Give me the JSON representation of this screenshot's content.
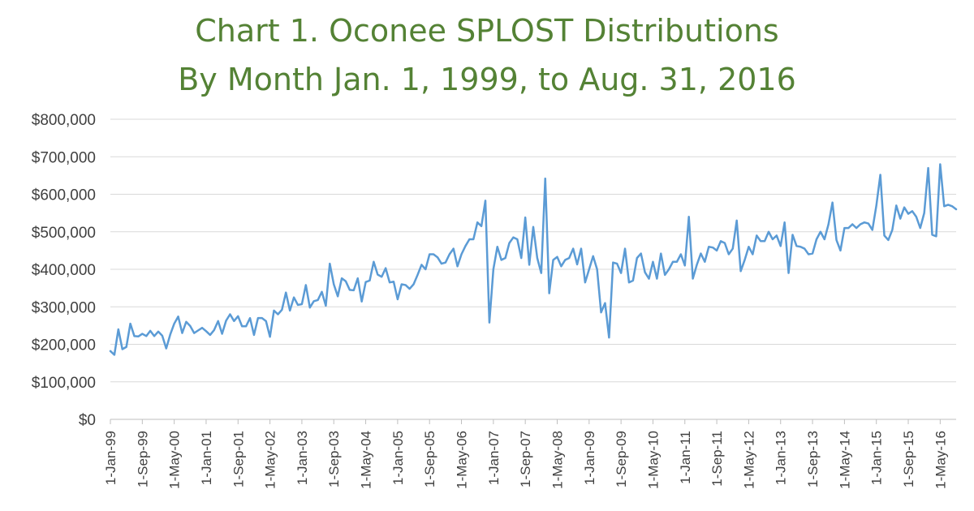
{
  "chart_data": {
    "type": "line",
    "title": "Chart 1. Oconee SPLOST Distributions",
    "subtitle": "By Month Jan. 1, 1999, to Aug. 31, 2016",
    "xlabel": "",
    "ylabel": "",
    "ylim": [
      0,
      800000
    ],
    "yticks": [
      "$0",
      "$100,000",
      "$200,000",
      "$300,000",
      "$400,000",
      "$500,000",
      "$600,000",
      "$700,000",
      "$800,000"
    ],
    "xticks": [
      "1-Jan-99",
      "1-Sep-99",
      "1-May-00",
      "1-Jan-01",
      "1-Sep-01",
      "1-May-02",
      "1-Jan-03",
      "1-Sep-03",
      "1-May-04",
      "1-Jan-05",
      "1-Sep-05",
      "1-May-06",
      "1-Jan-07",
      "1-Sep-07",
      "1-May-08",
      "1-Jan-09",
      "1-Sep-09",
      "1-May-10",
      "1-Jan-11",
      "1-Sep-11",
      "1-May-12",
      "1-Jan-13",
      "1-Sep-13",
      "1-May-14",
      "1-Jan-15",
      "1-Sep-15",
      "1-May-16"
    ],
    "x_start": "1-Jan-99",
    "x_end": "1-Aug-16",
    "grid": true,
    "legend": "none",
    "color": "#5B9BD5",
    "series": [
      {
        "values": [
          182000,
          172000,
          240000,
          187000,
          193000,
          255000,
          222000,
          221000,
          228000,
          222000,
          236000,
          222000,
          234000,
          223000,
          189000,
          226000,
          255000,
          274000,
          230000,
          260000,
          249000,
          230000,
          237000,
          244000,
          235000,
          225000,
          238000,
          262000,
          228000,
          263000,
          280000,
          262000,
          275000,
          248000,
          248000,
          270000,
          225000,
          270000,
          270000,
          262000,
          220000,
          290000,
          280000,
          292000,
          338000,
          290000,
          325000,
          305000,
          307000,
          358000,
          298000,
          315000,
          318000,
          340000,
          303000,
          415000,
          360000,
          328000,
          376000,
          368000,
          345000,
          344000,
          376000,
          314000,
          366000,
          370000,
          420000,
          386000,
          380000,
          403000,
          365000,
          367000,
          320000,
          360000,
          358000,
          348000,
          360000,
          385000,
          412000,
          400000,
          440000,
          440000,
          432000,
          415000,
          418000,
          440000,
          455000,
          408000,
          440000,
          462000,
          480000,
          480000,
          525000,
          515000,
          583000,
          258000,
          400000,
          460000,
          425000,
          430000,
          470000,
          485000,
          480000,
          430000,
          538000,
          412000,
          513000,
          430000,
          390000,
          642000,
          336000,
          425000,
          433000,
          408000,
          425000,
          430000,
          455000,
          413000,
          455000,
          365000,
          400000,
          435000,
          400000,
          285000,
          310000,
          218000,
          418000,
          415000,
          390000,
          455000,
          365000,
          370000,
          430000,
          442000,
          392000,
          375000,
          420000,
          375000,
          442000,
          385000,
          400000,
          420000,
          420000,
          440000,
          410000,
          540000,
          375000,
          412000,
          442000,
          420000,
          460000,
          458000,
          450000,
          475000,
          470000,
          440000,
          455000,
          530000,
          395000,
          425000,
          460000,
          440000,
          490000,
          475000,
          475000,
          500000,
          480000,
          490000,
          462000,
          525000,
          390000,
          492000,
          462000,
          460000,
          455000,
          440000,
          442000,
          480000,
          500000,
          480000,
          520000,
          578000,
          478000,
          450000,
          510000,
          510000,
          520000,
          510000,
          520000,
          525000,
          522000,
          505000,
          570000,
          652000,
          490000,
          478000,
          505000,
          570000,
          535000,
          565000,
          548000,
          555000,
          540000,
          510000,
          550000,
          670000,
          492000,
          488000,
          680000,
          568000,
          572000,
          568000,
          560000
        ]
      }
    ]
  }
}
